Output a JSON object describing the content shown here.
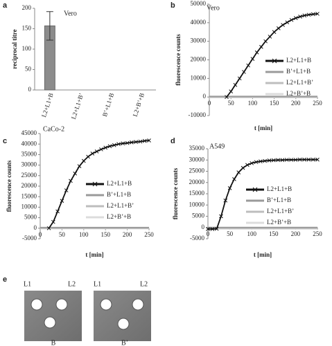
{
  "chart_data": [
    {
      "type": "bar",
      "panel_label": "a",
      "annotation": "Vero",
      "ylabel": "reciprocal titre",
      "categories": [
        "L2+L1+B",
        "L2+L1+B’",
        "B’+L1+B",
        "L2+B’+B"
      ],
      "values": [
        157,
        0,
        0,
        0
      ],
      "errors": [
        35,
        null,
        null,
        null
      ],
      "color": "#8c8c8c",
      "ylim": [
        0,
        200
      ],
      "yticks": [
        0,
        50,
        100,
        150,
        200
      ]
    },
    {
      "type": "line",
      "panel_label": "b",
      "annotation": "Vero",
      "xlabel": "t [min]",
      "ylabel": "fluorescence counts",
      "x": [
        0,
        10,
        20,
        30,
        40,
        50,
        60,
        70,
        80,
        90,
        100,
        110,
        120,
        130,
        140,
        150,
        160,
        170,
        180,
        190,
        200,
        210,
        220,
        230,
        240,
        250
      ],
      "xlim": [
        0,
        250
      ],
      "xticks": [
        0,
        50,
        100,
        150,
        200,
        250
      ],
      "ylim": [
        -10000,
        50000
      ],
      "yticks": [
        -10000,
        0,
        10000,
        20000,
        30000,
        40000,
        50000
      ],
      "series": [
        {
          "name": "L2+L1+B",
          "color": "#111111",
          "marker": "x",
          "values": [
            null,
            null,
            null,
            null,
            0,
            3000,
            6500,
            10000,
            13500,
            17000,
            20500,
            24000,
            27000,
            30000,
            32500,
            35000,
            37000,
            38800,
            40200,
            41500,
            42500,
            43300,
            43900,
            44300,
            44600,
            44800
          ]
        },
        {
          "name": "B’+L1+B",
          "color": "#9a9a9a",
          "values": [
            300,
            300,
            300,
            300,
            300,
            300,
            300,
            300,
            300,
            300,
            300,
            300,
            300,
            300,
            300,
            300,
            300,
            300,
            300,
            300,
            300,
            300,
            300,
            300,
            300,
            300
          ]
        },
        {
          "name": "L2+L1+B’",
          "color": "#bdbdbd",
          "values": [
            0,
            0,
            0,
            0,
            0,
            0,
            0,
            0,
            0,
            0,
            0,
            0,
            0,
            0,
            0,
            0,
            0,
            0,
            0,
            0,
            0,
            0,
            0,
            0,
            0,
            0
          ]
        },
        {
          "name": "L2+B’+B",
          "color": "#dcdcdc",
          "values": [
            -300,
            -300,
            -300,
            -300,
            -300,
            -300,
            -300,
            -300,
            -300,
            -300,
            -300,
            -300,
            -300,
            -300,
            -300,
            -300,
            -300,
            -300,
            -300,
            -300,
            -300,
            -300,
            -300,
            -300,
            -300,
            -300
          ]
        }
      ]
    },
    {
      "type": "line",
      "panel_label": "c",
      "annotation": "CaCo-2",
      "xlabel": "t [min]",
      "ylabel": "fluorescence counts",
      "x": [
        0,
        10,
        20,
        30,
        40,
        50,
        60,
        70,
        80,
        90,
        100,
        110,
        120,
        130,
        140,
        150,
        160,
        170,
        180,
        190,
        200,
        210,
        220,
        230,
        240,
        250
      ],
      "xlim": [
        0,
        250
      ],
      "xticks": [
        0,
        50,
        100,
        150,
        200,
        250
      ],
      "ylim": [
        -5000,
        45000
      ],
      "yticks": [
        -5000,
        0,
        5000,
        10000,
        15000,
        20000,
        25000,
        30000,
        35000,
        40000,
        45000
      ],
      "series": [
        {
          "name": "L2+L1+B",
          "color": "#111111",
          "marker": "x",
          "values": [
            null,
            null,
            0,
            3000,
            8000,
            13000,
            18000,
            22500,
            26000,
            29500,
            32000,
            34000,
            35500,
            36500,
            37500,
            38300,
            39000,
            39500,
            40000,
            40300,
            40500,
            40800,
            41000,
            41200,
            41500,
            41700
          ]
        },
        {
          "name": "B’+L1+B",
          "color": "#9a9a9a",
          "values": [
            300,
            300,
            300,
            300,
            300,
            300,
            300,
            300,
            300,
            300,
            300,
            300,
            300,
            300,
            300,
            300,
            300,
            300,
            300,
            300,
            300,
            300,
            300,
            300,
            300,
            300
          ]
        },
        {
          "name": "L2+L1+B’",
          "color": "#bdbdbd",
          "values": [
            0,
            0,
            0,
            0,
            0,
            0,
            0,
            0,
            0,
            0,
            0,
            0,
            0,
            0,
            0,
            0,
            0,
            0,
            0,
            0,
            0,
            0,
            0,
            0,
            0,
            0
          ]
        },
        {
          "name": "L2+B’+B",
          "color": "#dcdcdc",
          "values": [
            -200,
            -200,
            -200,
            -200,
            -200,
            -200,
            -200,
            -200,
            -200,
            -200,
            -200,
            -200,
            -200,
            -200,
            -200,
            -200,
            -200,
            -200,
            -200,
            -200,
            -200,
            -200,
            -200,
            -200,
            -200,
            -200
          ]
        }
      ]
    },
    {
      "type": "line",
      "panel_label": "d",
      "annotation": "A549",
      "xlabel": "t [min]",
      "ylabel": "fluorescence counts",
      "x": [
        0,
        10,
        20,
        30,
        40,
        50,
        60,
        70,
        80,
        90,
        100,
        110,
        120,
        130,
        140,
        150,
        160,
        170,
        180,
        190,
        200,
        210,
        220,
        230,
        240,
        250
      ],
      "xlim": [
        0,
        250
      ],
      "xticks": [
        0,
        50,
        100,
        150,
        200,
        250
      ],
      "ylim": [
        -5000,
        35000
      ],
      "yticks": [
        -5000,
        0,
        5000,
        10000,
        15000,
        20000,
        25000,
        30000,
        35000
      ],
      "series": [
        {
          "name": "L2+L1+B",
          "color": "#111111",
          "marker": "x",
          "values": [
            -700,
            -700,
            -600,
            5000,
            12000,
            17500,
            21500,
            24500,
            26500,
            27800,
            28600,
            29100,
            29400,
            29600,
            29800,
            29900,
            30000,
            30000,
            30100,
            30100,
            30100,
            30200,
            30200,
            30200,
            30200,
            30200
          ]
        },
        {
          "name": "B’+L1+B",
          "color": "#9a9a9a",
          "values": [
            0,
            0,
            0,
            0,
            0,
            0,
            0,
            0,
            0,
            0,
            0,
            0,
            0,
            0,
            0,
            0,
            0,
            0,
            0,
            0,
            0,
            0,
            0,
            0,
            0,
            0
          ]
        },
        {
          "name": "L2+L1+B’",
          "color": "#bdbdbd",
          "values": [
            -300,
            -300,
            -300,
            -300,
            -300,
            -300,
            -300,
            -300,
            -300,
            -300,
            -300,
            -300,
            -300,
            -300,
            -300,
            -300,
            -300,
            -300,
            -300,
            -300,
            -300,
            -300,
            -300,
            -300,
            -300,
            -300
          ]
        },
        {
          "name": "L2+B’+B",
          "color": "#dcdcdc",
          "values": [
            -600,
            -600,
            -600,
            -600,
            -600,
            -600,
            -600,
            -600,
            -600,
            -600,
            -600,
            -600,
            -600,
            -600,
            -600,
            -600,
            -600,
            -600,
            -600,
            -600,
            -600,
            -600,
            -600,
            -600,
            -600,
            -600
          ]
        }
      ]
    }
  ],
  "panel_e": {
    "panel_label": "e",
    "images": [
      {
        "top_left": "L1",
        "top_right": "L2",
        "caption": "B"
      },
      {
        "top_left": "L1",
        "top_right": "L2",
        "caption": "B’"
      }
    ]
  }
}
